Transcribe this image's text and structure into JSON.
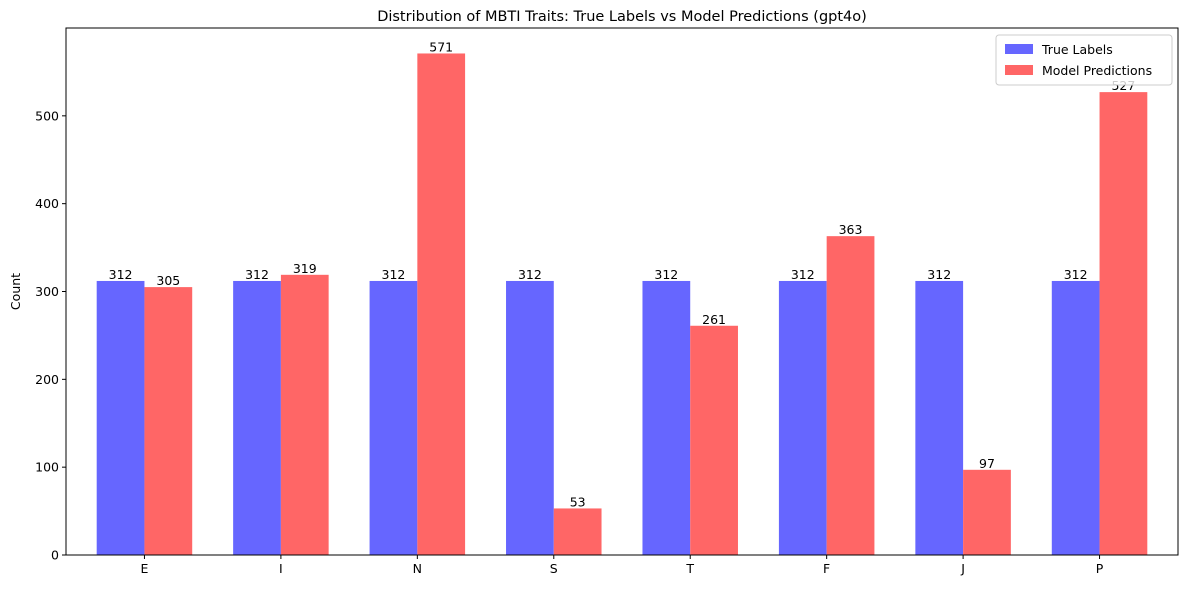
{
  "chart_data": {
    "type": "bar",
    "title": "Distribution of MBTI Traits: True Labels vs Model Predictions (gpt4o)",
    "xlabel": "",
    "ylabel": "Count",
    "ylim": [
      0,
      600
    ],
    "yticks": [
      0,
      100,
      200,
      300,
      400,
      500
    ],
    "categories": [
      "E",
      "I",
      "N",
      "S",
      "T",
      "F",
      "J",
      "P"
    ],
    "series": [
      {
        "name": "True Labels",
        "color": "#6666ff",
        "values": [
          312,
          312,
          312,
          312,
          312,
          312,
          312,
          312
        ]
      },
      {
        "name": "Model Predictions",
        "color": "#ff6666",
        "values": [
          305,
          319,
          571,
          53,
          261,
          363,
          97,
          527
        ]
      }
    ],
    "grid": false,
    "legend": "top-right"
  }
}
